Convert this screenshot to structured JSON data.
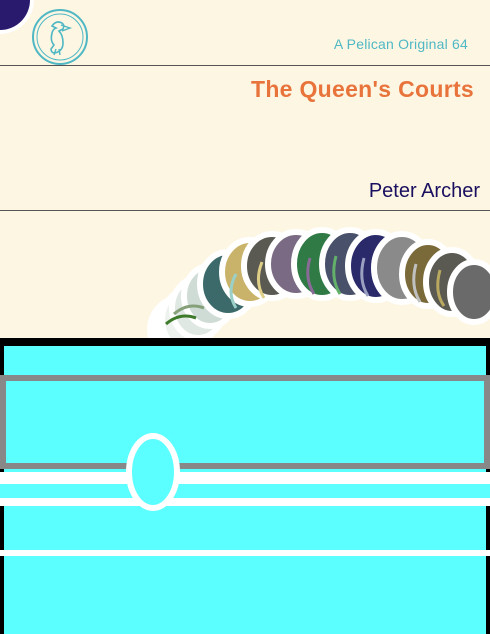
{
  "cover": {
    "series": "A Pelican Original 64",
    "title": "The Queen's Courts",
    "author": "Peter Archer"
  },
  "colors": {
    "background": "#fdf6e3",
    "series_text": "#4fb8c4",
    "title_text": "#e8743b",
    "author_text": "#1a1060",
    "corner_circle": "#2a1a6e",
    "box_fill": "#5cffff",
    "box_outline": "#888888"
  },
  "icons": {
    "logo": "pelican-logo-icon"
  }
}
